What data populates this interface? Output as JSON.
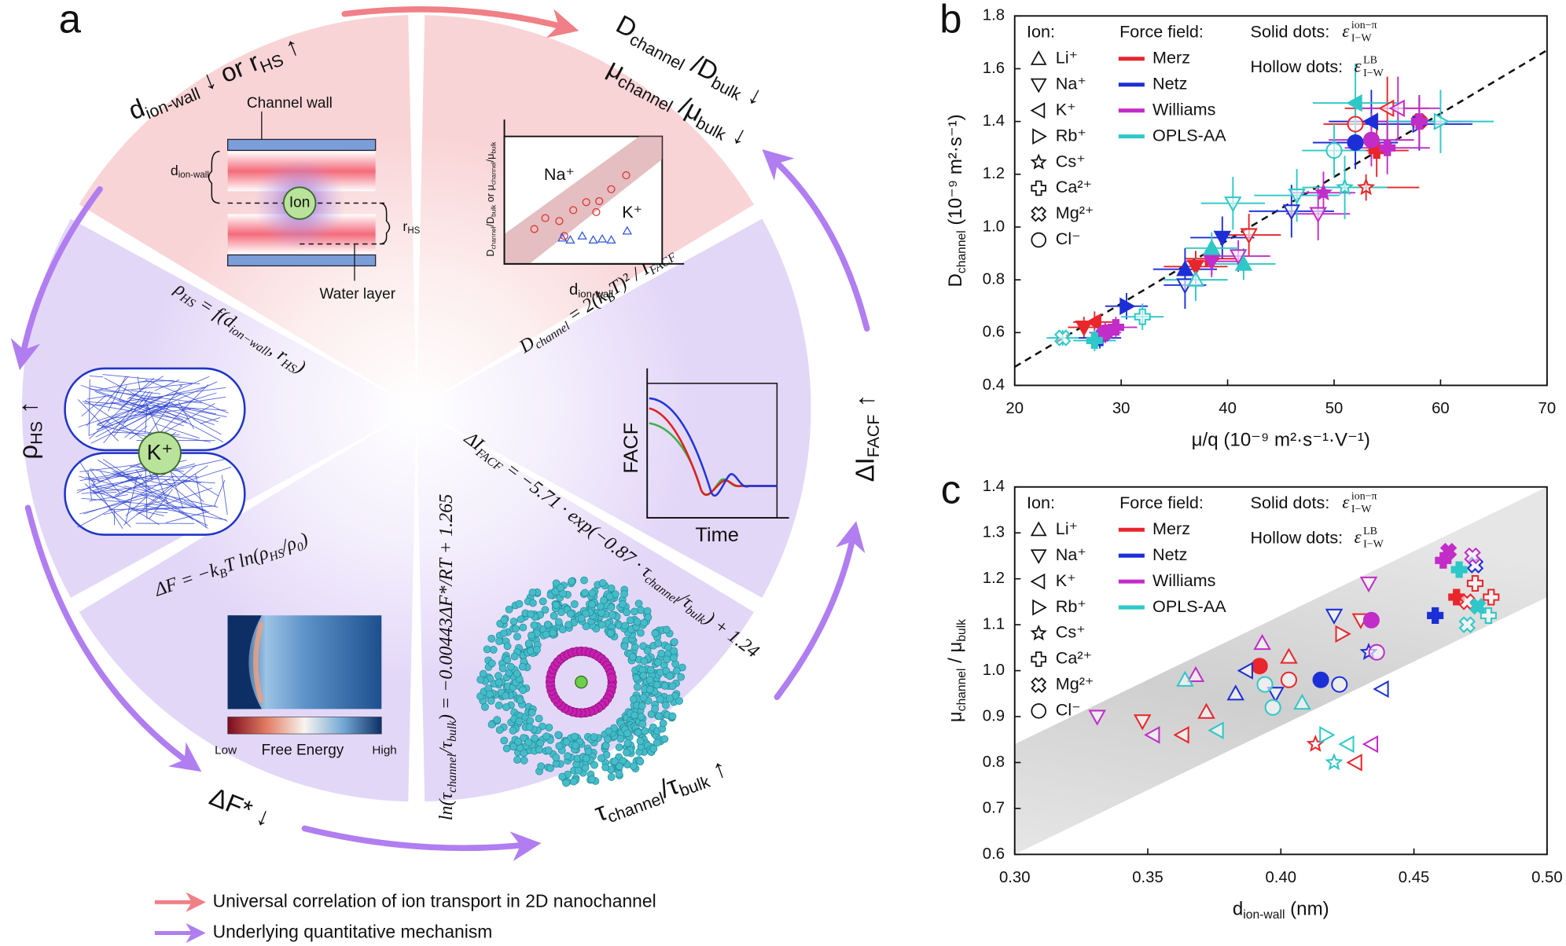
{
  "panel_a": {
    "label": "a",
    "outer": [
      [
        "d",
        "ion-wall",
        " ↓ or r",
        "HS",
        " ↑"
      ],
      [
        "D",
        "channel",
        " /D",
        "bulk",
        " ↓"
      ],
      [
        "μ",
        "channel",
        " /μ",
        "bulk",
        " ↓"
      ],
      [
        "ΔI",
        "FACF",
        " ↑"
      ],
      [
        "τ",
        "channel",
        "/τ",
        "bulk",
        " ↑"
      ],
      [
        "ΔF* ↓"
      ],
      [
        "ρ",
        "HS",
        " ↑"
      ]
    ],
    "formulas": [
      [
        "ρ",
        "HS",
        " = f(d",
        "ion−wall",
        ", r",
        "HS",
        ")"
      ],
      [
        "D",
        "channel",
        " = 2(k",
        "B",
        "T)² / I",
        "FACF"
      ],
      [
        "ΔF = −k",
        "B",
        "T ln(ρ",
        "HS",
        "/ρ",
        "0",
        ")"
      ],
      [
        "ΔI",
        "FACF",
        " = −5.71 · exp(−0.87 · τ",
        "channel",
        "/τ",
        "bulk",
        ") + 1.24"
      ],
      [
        "ln(τ",
        "channel",
        "/τ",
        "bulk",
        ") = −0.00443ΔF*/RT + 1.265"
      ]
    ],
    "insets": [
      [
        "Channel wall"
      ],
      [
        "d",
        "ion-wall"
      ],
      [
        "Ion"
      ],
      [
        "r",
        "HS"
      ],
      [
        "Water layer"
      ],
      [
        "Na⁺"
      ],
      [
        "K⁺"
      ],
      [
        "d",
        "ion-wall"
      ],
      [
        "D",
        "channel",
        "/D",
        "bulk",
        " or μ",
        "channel",
        "/μ",
        "bulk"
      ],
      [
        "K⁺"
      ],
      [
        "FACF"
      ],
      [
        "Time"
      ],
      [
        "Low"
      ],
      [
        "Free Energy"
      ],
      [
        "High"
      ]
    ],
    "legend": [
      "Universal correlation of ion transport in 2D nanochannel",
      "Underlying quantitative mechanism"
    ]
  },
  "chart_data": [
    {
      "type": "scatter",
      "label": "b",
      "xlabel": [
        "μ/q (10⁻⁹ m²·s⁻¹·V⁻¹)"
      ],
      "ylabel": [
        "D",
        "channel",
        " (10⁻⁹ m²·s⁻¹)"
      ],
      "xlim": [
        20,
        70
      ],
      "xticks": [
        20,
        30,
        40,
        50,
        60,
        70
      ],
      "ylim": [
        0.4,
        1.8
      ],
      "yticks": [
        0.4,
        0.6,
        0.8,
        {
          "value": 1,
          "label": "1.0"
        },
        1.2,
        1.4,
        1.6,
        1.8
      ],
      "ion_title": "Ion:",
      "ff_title": "Force field:",
      "solid_label": "Solid dots:",
      "hollow_label": "Hollow dots:",
      "epsilon": "ε",
      "epsilon_sub": "I−W",
      "solid_sup": "ion−π",
      "hollow_sup": "LB",
      "ions": [
        {
          "label": "Li⁺",
          "marker": "triangle-up"
        },
        {
          "label": "Na⁺",
          "marker": "triangle-down"
        },
        {
          "label": "K⁺",
          "marker": "triangle-left"
        },
        {
          "label": "Rb⁺",
          "marker": "triangle-right"
        },
        {
          "label": "Cs⁺",
          "marker": "star"
        },
        {
          "label": "Ca²⁺",
          "marker": "plus"
        },
        {
          "label": "Mg²⁺",
          "marker": "cross"
        },
        {
          "label": "Cl⁻",
          "marker": "circle"
        }
      ],
      "fit": {
        "x": [
          20,
          70
        ],
        "values": [
          0.47,
          1.67
        ]
      },
      "series": [
        {
          "name": "Merz",
          "color": "#e8262b",
          "x": [
            26.5,
            27.5,
            37,
            38.5,
            42,
            53,
            54,
            55,
            58,
            52
          ],
          "values": [
            0.62,
            0.64,
            0.85,
            0.88,
            0.97,
            1.15,
            1.29,
            1.45,
            1.4,
            1.39
          ],
          "ions": [
            "Na⁺",
            "K⁺",
            "Na⁺",
            "Rb⁺",
            "Na⁺",
            "Cs⁺",
            "Ca²⁺",
            "K⁺",
            "Mg²⁺",
            "Cl⁻"
          ],
          "hollow": [
            false,
            false,
            false,
            false,
            true,
            true,
            false,
            true,
            false,
            true
          ],
          "xerr": [
            1.5,
            2,
            3,
            2.5,
            3,
            5,
            3,
            4,
            4,
            3
          ],
          "yerr": [
            0.04,
            0.04,
            0.06,
            0.06,
            0.08,
            0.05,
            0.1,
            0.12,
            0.1,
            0.1
          ]
        },
        {
          "name": "Netz",
          "color": "#1c2fd6",
          "x": [
            28,
            30.5,
            36,
            36,
            39.5,
            46,
            52,
            53.5,
            58
          ],
          "values": [
            0.58,
            0.7,
            0.84,
            0.78,
            0.96,
            1.06,
            1.32,
            1.4,
            1.39
          ],
          "ions": [
            "Ca²⁺",
            "Rb⁺",
            "Li⁺",
            "Na⁺",
            "Na⁺",
            "Na⁺",
            "Cl⁻",
            "K⁺",
            "Rb⁺"
          ],
          "hollow": [
            false,
            false,
            false,
            true,
            false,
            true,
            false,
            false,
            true
          ],
          "xerr": [
            2,
            2,
            3,
            2,
            3,
            4,
            4,
            4,
            5
          ],
          "yerr": [
            0.04,
            0.05,
            0.08,
            0.09,
            0.08,
            0.1,
            0.1,
            0.12,
            0.1
          ]
        },
        {
          "name": "Williams",
          "color": "#c22cc8",
          "x": [
            28.5,
            29.5,
            38.5,
            41,
            48.5,
            49,
            53.5,
            55,
            56,
            58
          ],
          "values": [
            0.6,
            0.62,
            0.87,
            0.89,
            1.05,
            1.13,
            1.33,
            1.3,
            1.45,
            1.4
          ],
          "ions": [
            "Cl⁻",
            "Ca²⁺",
            "Na⁺",
            "Na⁺",
            "Na⁺",
            "Cs⁺",
            "Cl⁻",
            "Ca²⁺",
            "K⁺",
            "Ca²⁺"
          ],
          "hollow": [
            false,
            false,
            false,
            true,
            true,
            false,
            false,
            false,
            true,
            false
          ],
          "xerr": [
            1.5,
            2,
            2.5,
            3,
            3,
            3,
            4,
            4,
            4,
            5
          ],
          "yerr": [
            0.04,
            0.04,
            0.06,
            0.06,
            0.1,
            0.08,
            0.1,
            0.1,
            0.12,
            0.1
          ]
        },
        {
          "name": "OPLS-AA",
          "color": "#2ec8c8",
          "x": [
            24.5,
            27.5,
            32,
            37,
            38.5,
            41.5,
            40.5,
            46.5,
            51,
            50,
            52,
            60
          ],
          "values": [
            0.58,
            0.57,
            0.66,
            0.8,
            0.92,
            0.86,
            1.09,
            1.12,
            1.15,
            1.29,
            1.47,
            1.4
          ],
          "ions": [
            "Mg²⁺",
            "Ca²⁺",
            "Ca²⁺",
            "Li⁺",
            "Li⁺",
            "Li⁺",
            "Na⁺",
            "Na⁺",
            "Cs⁺",
            "Cl⁻",
            "K⁺",
            "Rb⁺"
          ],
          "hollow": [
            true,
            false,
            true,
            true,
            false,
            false,
            true,
            true,
            true,
            true,
            false,
            true
          ],
          "xerr": [
            1.5,
            2,
            2,
            3,
            2.5,
            3,
            3,
            4,
            4,
            3,
            4,
            5
          ],
          "yerr": [
            0.03,
            0.04,
            0.05,
            0.08,
            0.06,
            0.06,
            0.1,
            0.1,
            0.12,
            0.1,
            0.15,
            0.12
          ]
        }
      ]
    },
    {
      "type": "scatter",
      "label": "c",
      "xlabel": [
        "d",
        "ion-wall",
        " (nm)"
      ],
      "ylabel": [
        "μ",
        "channel",
        " / μ",
        "bulk"
      ],
      "xlim": [
        0.3,
        0.5
      ],
      "xticks": [
        {
          "value": 0.3,
          "label": "0.30"
        },
        0.35,
        {
          "value": 0.4,
          "label": "0.40"
        },
        0.45,
        {
          "value": 0.5,
          "label": "0.50"
        }
      ],
      "ylim": [
        0.6,
        1.4
      ],
      "yticks": [
        0.6,
        0.7,
        0.8,
        0.9,
        {
          "value": 1,
          "label": "1.0"
        },
        1.1,
        1.2,
        1.3,
        1.4
      ],
      "ion_title": "Ion:",
      "ff_title": "Force field:",
      "solid_label": "Solid dots:",
      "hollow_label": "Hollow dots:",
      "epsilon": "ε",
      "epsilon_sub": "I−W",
      "solid_sup": "ion−π",
      "hollow_sup": "LB",
      "ions": [
        {
          "label": "Li⁺",
          "marker": "triangle-up"
        },
        {
          "label": "Na⁺",
          "marker": "triangle-down"
        },
        {
          "label": "K⁺",
          "marker": "triangle-left"
        },
        {
          "label": "Rb⁺",
          "marker": "triangle-right"
        },
        {
          "label": "Cs⁺",
          "marker": "star"
        },
        {
          "label": "Ca²⁺",
          "marker": "plus"
        },
        {
          "label": "Mg²⁺",
          "marker": "cross"
        },
        {
          "label": "Cl⁻",
          "marker": "circle"
        }
      ],
      "band": {
        "x": [
          0.3,
          0.5
        ],
        "lower": [
          0.6,
          1.16
        ],
        "upper": [
          0.84,
          1.4
        ]
      },
      "series": [
        {
          "name": "Merz",
          "color": "#e8262b",
          "x": [
            0.348,
            0.363,
            0.372,
            0.392,
            0.403,
            0.403,
            0.423,
            0.43,
            0.428,
            0.413,
            0.466,
            0.473,
            0.479,
            0.47
          ],
          "values": [
            0.89,
            0.86,
            0.91,
            1.01,
            0.98,
            1.03,
            1.08,
            1.11,
            0.8,
            0.84,
            1.16,
            1.19,
            1.16,
            1.15
          ],
          "ions": [
            "Na⁺",
            "K⁺",
            "Li⁺",
            "Cl⁻",
            "Cl⁻",
            "Li⁺",
            "Rb⁺",
            "Na⁺",
            "K⁺",
            "Cs⁺",
            "Ca²⁺",
            "Ca²⁺",
            "Ca²⁺",
            "Mg²⁺"
          ],
          "hollow": [
            true,
            true,
            true,
            false,
            true,
            true,
            true,
            true,
            true,
            true,
            false,
            true,
            true,
            true
          ]
        },
        {
          "name": "Netz",
          "color": "#1c2fd6",
          "x": [
            0.383,
            0.387,
            0.398,
            0.415,
            0.422,
            0.42,
            0.433,
            0.438,
            0.458,
            0.473
          ],
          "values": [
            0.95,
            1.0,
            0.95,
            0.98,
            0.97,
            1.12,
            1.04,
            0.96,
            1.12,
            1.23
          ],
          "ions": [
            "Li⁺",
            "K⁺",
            "Na⁺",
            "Cl⁻",
            "Cl⁻",
            "Na⁺",
            "Cs⁺",
            "K⁺",
            "Ca²⁺",
            "Mg²⁺"
          ],
          "hollow": [
            true,
            true,
            true,
            false,
            true,
            true,
            true,
            true,
            false,
            true
          ]
        },
        {
          "name": "Williams",
          "color": "#c22cc8",
          "x": [
            0.331,
            0.352,
            0.368,
            0.393,
            0.433,
            0.434,
            0.436,
            0.434,
            0.461,
            0.463,
            0.472
          ],
          "values": [
            0.9,
            0.86,
            0.99,
            1.06,
            1.19,
            1.11,
            1.04,
            0.84,
            1.24,
            1.26,
            1.25
          ],
          "ions": [
            "Na⁺",
            "K⁺",
            "Li⁺",
            "Li⁺",
            "Na⁺",
            "Cl⁻",
            "Cl⁻",
            "K⁺",
            "Ca²⁺",
            "Mg²⁺",
            "Mg²⁺"
          ],
          "hollow": [
            true,
            true,
            true,
            true,
            true,
            false,
            true,
            true,
            false,
            false,
            true
          ]
        },
        {
          "name": "OPLS-AA",
          "color": "#2ec8c8",
          "x": [
            0.364,
            0.376,
            0.394,
            0.397,
            0.408,
            0.417,
            0.42,
            0.425,
            0.467,
            0.47,
            0.478,
            0.474
          ],
          "values": [
            0.98,
            0.87,
            0.97,
            0.92,
            0.93,
            0.86,
            0.8,
            0.84,
            1.22,
            1.1,
            1.12,
            1.14
          ],
          "ions": [
            "Li⁺",
            "K⁺",
            "Cl⁻",
            "Cl⁻",
            "Li⁺",
            "Rb⁺",
            "Cs⁺",
            "K⁺",
            "Ca²⁺",
            "Mg²⁺",
            "Ca²⁺",
            "Mg²⁺"
          ],
          "hollow": [
            true,
            true,
            true,
            true,
            true,
            true,
            true,
            true,
            false,
            true,
            true,
            false
          ]
        }
      ]
    }
  ]
}
